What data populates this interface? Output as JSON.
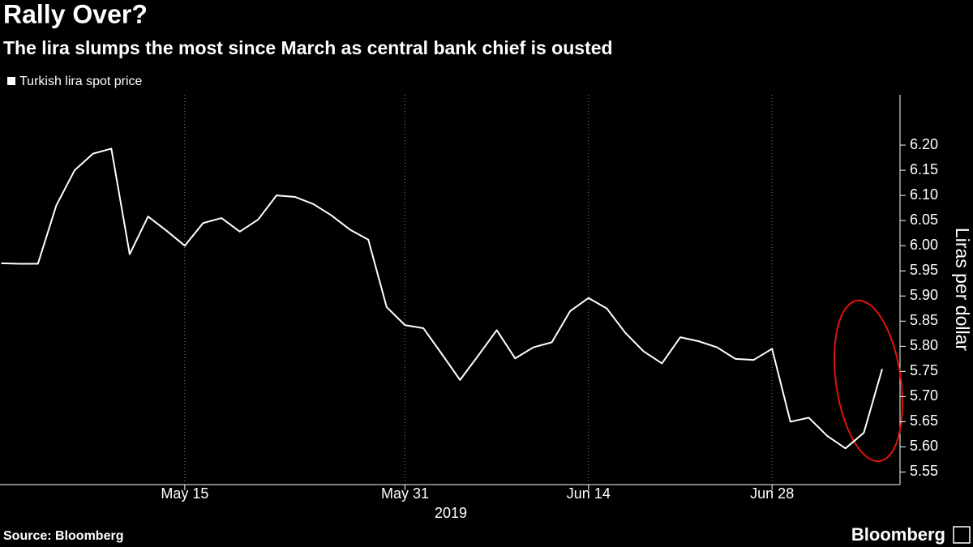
{
  "chart_data": {
    "type": "line",
    "title": "Rally Over?",
    "subtitle": "The lira slumps the most since March as central bank chief is ousted",
    "y_axis_label": "Liras per dollar",
    "x_axis_label": "2019",
    "source": "Source: Bloomberg",
    "brand": "Bloomberg",
    "x": [
      "2019-05-01",
      "2019-05-02",
      "2019-05-03",
      "2019-05-06",
      "2019-05-07",
      "2019-05-08",
      "2019-05-09",
      "2019-05-10",
      "2019-05-13",
      "2019-05-14",
      "2019-05-15",
      "2019-05-16",
      "2019-05-17",
      "2019-05-20",
      "2019-05-21",
      "2019-05-22",
      "2019-05-23",
      "2019-05-24",
      "2019-05-27",
      "2019-05-28",
      "2019-05-29",
      "2019-05-30",
      "2019-05-31",
      "2019-06-03",
      "2019-06-04",
      "2019-06-05",
      "2019-06-06",
      "2019-06-07",
      "2019-06-10",
      "2019-06-11",
      "2019-06-12",
      "2019-06-13",
      "2019-06-14",
      "2019-06-17",
      "2019-06-18",
      "2019-06-19",
      "2019-06-20",
      "2019-06-21",
      "2019-06-24",
      "2019-06-25",
      "2019-06-26",
      "2019-06-27",
      "2019-06-28",
      "2019-07-01",
      "2019-07-02",
      "2019-07-03",
      "2019-07-04",
      "2019-07-05",
      "2019-07-08"
    ],
    "series": [
      {
        "name": "Turkish lira spot price",
        "color": "#ffffff",
        "values": [
          5.965,
          5.964,
          5.964,
          6.08,
          6.15,
          6.183,
          6.193,
          5.983,
          6.058,
          6.03,
          6.0,
          6.045,
          6.055,
          6.028,
          6.052,
          6.1,
          6.097,
          6.083,
          6.06,
          6.032,
          6.012,
          5.878,
          5.842,
          5.836,
          5.785,
          5.733,
          5.782,
          5.832,
          5.776,
          5.798,
          5.808,
          5.87,
          5.896,
          5.875,
          5.827,
          5.79,
          5.766,
          5.818,
          5.81,
          5.798,
          5.775,
          5.773,
          5.795,
          5.65,
          5.658,
          5.622,
          5.597,
          5.628,
          5.755
        ]
      }
    ],
    "xticks": [
      {
        "value": "2019-05-15",
        "label": "May 15"
      },
      {
        "value": "2019-05-31",
        "label": "May 31"
      },
      {
        "value": "2019-06-14",
        "label": "Jun 14"
      },
      {
        "value": "2019-06-28",
        "label": "Jun 28"
      }
    ],
    "ylim": [
      5.525,
      6.3
    ],
    "yticks": [
      5.55,
      {
        "value": 5.6,
        "label": "5.60"
      },
      5.65,
      {
        "value": 5.7,
        "label": "5.70"
      },
      5.75,
      {
        "value": 5.8,
        "label": "5.80"
      },
      5.85,
      {
        "value": 5.9,
        "label": "5.90"
      },
      5.95,
      {
        "value": 6.0,
        "label": "6.00"
      },
      6.05,
      {
        "value": 6.1,
        "label": "6.10"
      },
      6.15,
      {
        "value": 6.2,
        "label": "6.20"
      }
    ],
    "grid": true
  }
}
